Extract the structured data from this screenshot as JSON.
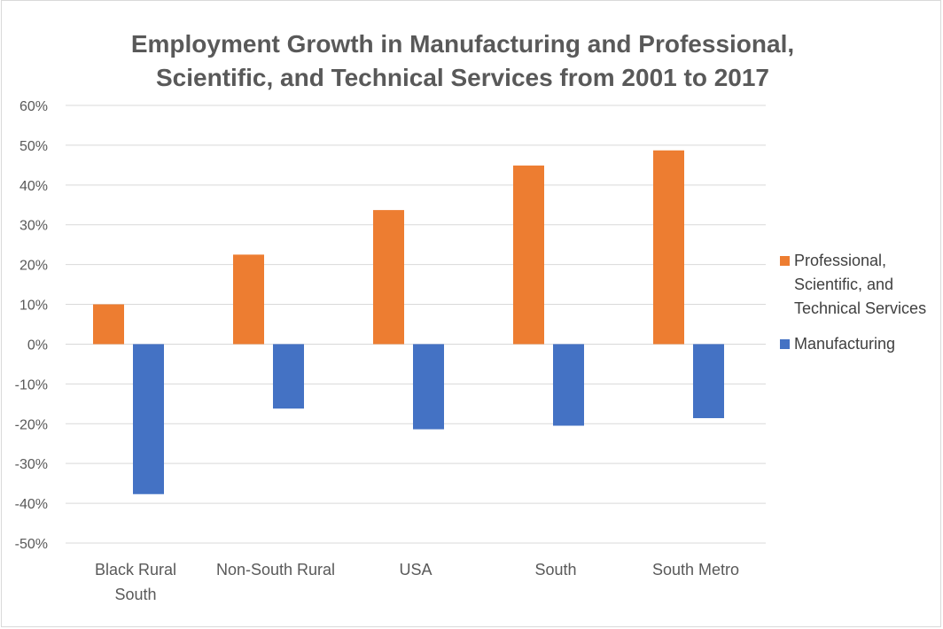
{
  "colors": {
    "professional": "#ed7d31",
    "manufacturing": "#4472c4",
    "grid": "#d9d9d9",
    "text": "#595959"
  },
  "chart_data": {
    "type": "bar",
    "title_lines": [
      "Employment Growth in Manufacturing and Professional,",
      "Scientific, and Technical Services from 2001 to 2017"
    ],
    "categories": [
      "Black Rural South",
      "Non-South Rural",
      "USA",
      "South",
      "South Metro"
    ],
    "category_label_lines": [
      [
        "Black Rural",
        "South"
      ],
      [
        "Non-South Rural"
      ],
      [
        "USA"
      ],
      [
        "South"
      ],
      [
        "South Metro"
      ]
    ],
    "series": [
      {
        "name": "Professional, Scientific, and Technical Services",
        "legend_lines": [
          "Professional,",
          "Scientific, and",
          "Technical Services"
        ],
        "values": [
          10,
          22.5,
          33.7,
          44.9,
          48.7
        ]
      },
      {
        "name": "Manufacturing",
        "legend_lines": [
          "Manufacturing"
        ],
        "values": [
          -37.7,
          -16.2,
          -21.4,
          -20.5,
          -18.6
        ]
      }
    ],
    "ylim": [
      -50,
      60
    ],
    "y_ticks": [
      60,
      50,
      40,
      30,
      20,
      10,
      0,
      -10,
      -20,
      -30,
      -40,
      -50
    ],
    "y_tick_labels": [
      "60%",
      "50%",
      "40%",
      "30%",
      "20%",
      "10%",
      "0%",
      "-10%",
      "-20%",
      "-30%",
      "-40%",
      "-50%"
    ],
    "xlabel": "",
    "ylabel": "",
    "grid": true,
    "legend_position": "right"
  }
}
